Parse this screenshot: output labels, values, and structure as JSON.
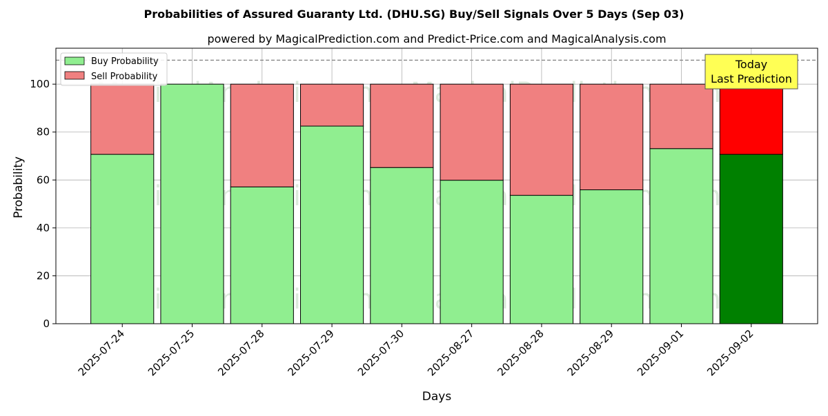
{
  "chart_data": {
    "type": "bar",
    "stacked": true,
    "title": "Probabilities of Assured Guaranty Ltd. (DHU.SG) Buy/Sell Signals Over 5 Days (Sep 03)",
    "subtitle": "powered by MagicalPrediction.com and Predict-Price.com and MagicalAnalysis.com",
    "xlabel": "Days",
    "ylabel": "Probability",
    "ylim": [
      0,
      115
    ],
    "yticks": [
      0,
      20,
      40,
      60,
      80,
      100
    ],
    "grid": true,
    "reference_line": 110,
    "legend_position": "top-left",
    "categories": [
      "2025-07-24",
      "2025-07-25",
      "2025-07-28",
      "2025-07-29",
      "2025-07-30",
      "2025-08-27",
      "2025-08-28",
      "2025-08-29",
      "2025-09-01",
      "2025-09-02"
    ],
    "series": [
      {
        "name": "Buy Probability",
        "color": "#90ee90",
        "highlight_color": "#008000",
        "values": [
          70.7,
          100,
          57.1,
          82.5,
          65.2,
          59.9,
          53.6,
          55.9,
          73.1,
          70.7
        ]
      },
      {
        "name": "Sell Probability",
        "color": "#f08080",
        "highlight_color": "#ff0000",
        "values": [
          29.3,
          0,
          42.9,
          17.5,
          34.8,
          40.1,
          46.4,
          44.1,
          26.9,
          29.3
        ]
      }
    ],
    "highlight_index": 9,
    "annotation": {
      "line1": "Today",
      "line2": "Last Prediction",
      "color": "#ffff55"
    },
    "watermarks": [
      "MagicalAnalysis.com",
      "MagicalPrediction.com"
    ]
  }
}
